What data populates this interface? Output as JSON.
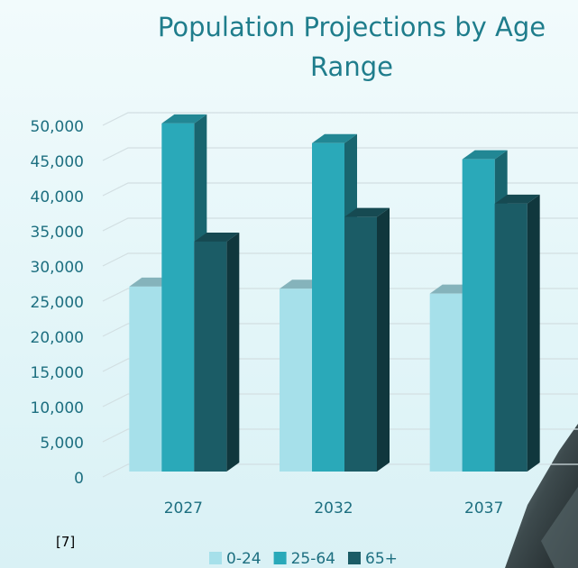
{
  "chart_data": {
    "type": "bar3d",
    "title": "Population Projections by Age Range",
    "categories": [
      "2027",
      "2032",
      "2037"
    ],
    "series": [
      {
        "name": "0-24",
        "color": "#a6e0ea",
        "values": [
          26300,
          26000,
          25300
        ]
      },
      {
        "name": "25-64",
        "color": "#2aa9b9",
        "values": [
          49500,
          46700,
          44400
        ]
      },
      {
        "name": "65+",
        "color": "#1b5c66",
        "values": [
          32700,
          36200,
          38100
        ]
      }
    ],
    "ylim": [
      0,
      50000
    ],
    "yticks": [
      0,
      {
        "value": 5000,
        "label": "5,000"
      },
      {
        "value": 10000,
        "label": "10,000"
      },
      {
        "value": 15000,
        "label": "15,000"
      },
      {
        "value": 20000,
        "label": "20,000"
      },
      {
        "value": 25000,
        "label": "25,000"
      },
      {
        "value": 30000,
        "label": "30,000"
      },
      {
        "value": 35000,
        "label": "35,000"
      },
      {
        "value": 40000,
        "label": "40,000"
      },
      {
        "value": 45000,
        "label": "45,000"
      },
      {
        "value": 50000,
        "label": "50,000"
      }
    ],
    "grid": true,
    "legend": "bottom",
    "source_note": "[7]"
  }
}
